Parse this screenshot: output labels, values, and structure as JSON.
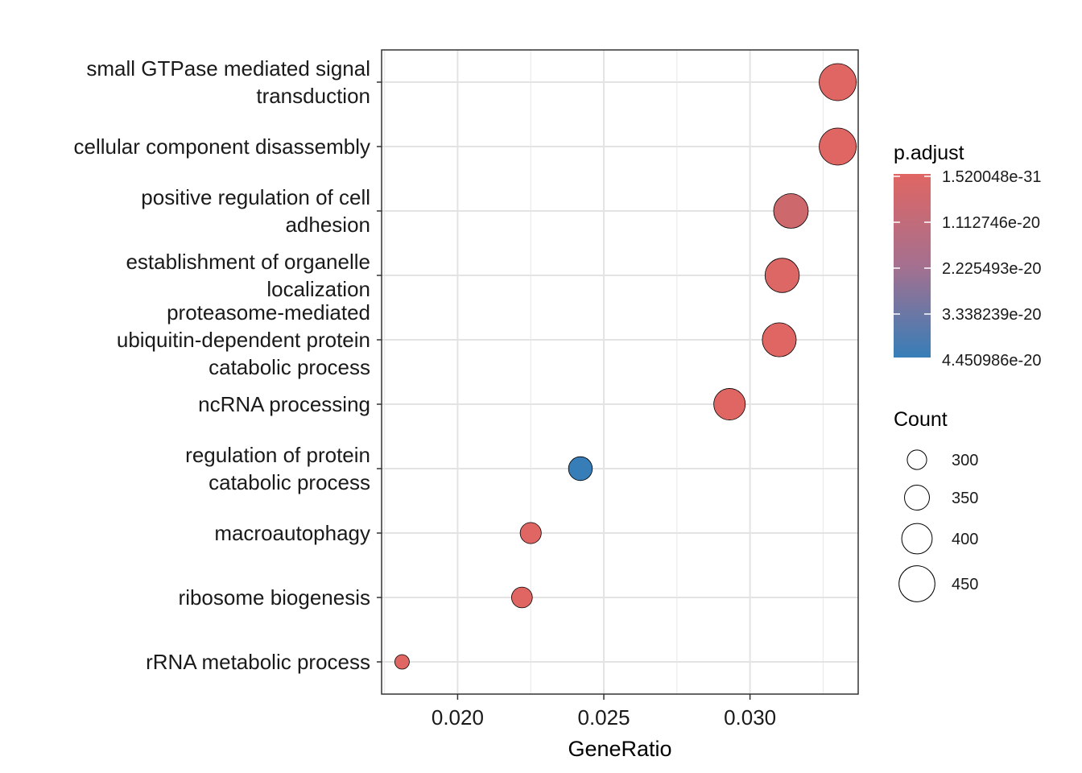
{
  "chart_data": {
    "type": "scatter",
    "xlabel": "GeneRatio",
    "xlim": [
      0.0174,
      0.0337
    ],
    "x_ticks": [
      "0.020",
      "0.025",
      "0.030"
    ],
    "x_tick_values": [
      0.02,
      0.025,
      0.03
    ],
    "grid": true,
    "points": [
      {
        "label": [
          "small GTPase mediated signal",
          "transduction"
        ],
        "x": 0.033,
        "count": 460,
        "p_adjust": 1.52e-31
      },
      {
        "label": [
          "cellular component disassembly"
        ],
        "x": 0.033,
        "count": 460,
        "p_adjust": 1.52e-31
      },
      {
        "label": [
          "positive regulation of cell",
          "adhesion"
        ],
        "x": 0.0314,
        "count": 438,
        "p_adjust": 5e-21
      },
      {
        "label": [
          "establishment of organelle",
          "localization"
        ],
        "x": 0.0311,
        "count": 435,
        "p_adjust": 1e-21
      },
      {
        "label": [
          "proteasome-mediated",
          "ubiquitin-dependent protein",
          "catabolic process"
        ],
        "x": 0.031,
        "count": 432,
        "p_adjust": 1e-22
      },
      {
        "label": [
          "ncRNA processing"
        ],
        "x": 0.0293,
        "count": 410,
        "p_adjust": 1e-22
      },
      {
        "label": [
          "regulation of protein",
          "catabolic process"
        ],
        "x": 0.0242,
        "count": 340,
        "p_adjust": 4.45e-20
      },
      {
        "label": [
          "macroautophagy"
        ],
        "x": 0.0225,
        "count": 315,
        "p_adjust": 1e-22
      },
      {
        "label": [
          "ribosome biogenesis"
        ],
        "x": 0.0222,
        "count": 312,
        "p_adjust": 1e-22
      },
      {
        "label": [
          "rRNA metabolic process"
        ],
        "x": 0.0181,
        "count": 255,
        "p_adjust": 1e-22
      }
    ],
    "legend_color": {
      "title": "p.adjust",
      "labels": [
        "1.520048e-31",
        "1.112746e-20",
        "2.225493e-20",
        "3.338239e-20",
        "4.450986e-20"
      ],
      "values": [
        1.520048e-31,
        1.112746e-20,
        2.225493e-20,
        3.338239e-20,
        4.450986e-20
      ],
      "color_low": "#e06663",
      "color_high": "#377eb8",
      "placement": "right"
    },
    "legend_size": {
      "title": "Count",
      "labels": [
        "300",
        "350",
        "400",
        "450"
      ],
      "values": [
        300,
        350,
        400,
        450
      ],
      "placement": "right"
    }
  }
}
